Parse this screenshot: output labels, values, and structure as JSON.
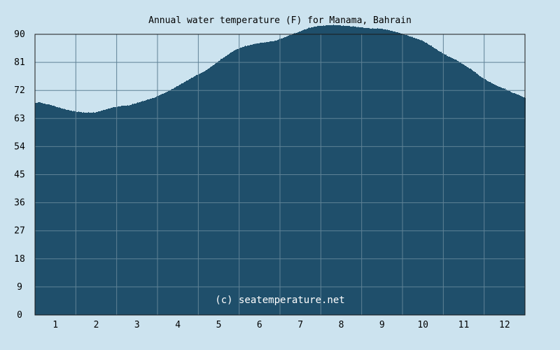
{
  "chart_data": {
    "type": "area",
    "title": "Annual water temperature (F) for Manama, Bahrain",
    "xlabel": "",
    "ylabel": "",
    "ylim": [
      0,
      90
    ],
    "yticks": [
      0,
      9,
      18,
      27,
      36,
      45,
      54,
      63,
      72,
      81,
      90
    ],
    "xlim": [
      0.5,
      12.5
    ],
    "xticks": [
      1,
      2,
      3,
      4,
      5,
      6,
      7,
      8,
      9,
      10,
      11,
      12
    ],
    "grid": true,
    "legend": "none",
    "colors": {
      "background": "#cce3ef",
      "area": "#1f4f6b",
      "grid": "#5f8296",
      "axis": "#1a1a1a"
    },
    "series": [
      {
        "x": [
          0.5,
          0.6,
          0.7,
          0.85,
          1.0,
          1.15,
          1.3,
          1.45,
          1.6,
          1.75,
          1.9,
          2.0,
          2.2,
          2.4,
          2.6,
          2.8,
          3.0,
          3.2,
          3.4,
          3.6,
          3.8,
          4.0,
          4.2,
          4.4,
          4.6,
          4.8,
          5.0,
          5.2,
          5.4,
          5.6,
          5.8,
          6.0,
          6.2,
          6.4,
          6.6,
          6.8,
          7.0,
          7.2,
          7.4,
          7.6,
          7.8,
          8.0,
          8.2,
          8.4,
          8.6,
          8.8,
          9.0,
          9.2,
          9.4,
          9.6,
          9.8,
          10.0,
          10.2,
          10.4,
          10.6,
          10.8,
          11.0,
          11.2,
          11.4,
          11.6,
          11.8,
          12.0,
          12.2,
          12.35,
          12.5
        ],
        "values": [
          68.0,
          68.2,
          67.8,
          67.4,
          66.8,
          66.2,
          65.7,
          65.3,
          65.0,
          64.9,
          64.8,
          65.0,
          65.8,
          66.5,
          67.0,
          67.2,
          68.0,
          68.8,
          69.6,
          70.8,
          72.0,
          73.5,
          75.0,
          76.5,
          77.8,
          79.5,
          81.5,
          83.3,
          85.0,
          86.0,
          86.7,
          87.2,
          87.5,
          88.0,
          89.0,
          90.0,
          91.0,
          92.0,
          92.6,
          92.8,
          92.9,
          92.8,
          92.6,
          92.3,
          92.0,
          91.8,
          91.7,
          91.2,
          90.5,
          89.6,
          88.8,
          87.8,
          86.2,
          84.5,
          83.0,
          81.8,
          80.2,
          78.5,
          76.5,
          74.8,
          73.5,
          72.5,
          71.2,
          70.5,
          69.5
        ]
      }
    ],
    "watermark": "(c) seatemperature.net"
  }
}
